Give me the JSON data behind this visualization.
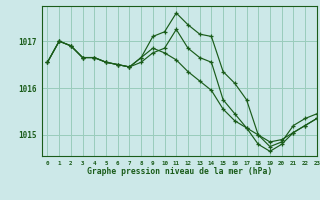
{
  "title": "Graphe pression niveau de la mer (hPa)",
  "background_color": "#cce8e8",
  "grid_color": "#99ccbb",
  "line_color": "#1a5c1a",
  "marker_color": "#1a5c1a",
  "xlim": [
    -0.5,
    23
  ],
  "ylim": [
    1014.55,
    1017.75
  ],
  "yticks": [
    1015,
    1016,
    1017
  ],
  "xticks": [
    0,
    1,
    2,
    3,
    4,
    5,
    6,
    7,
    8,
    9,
    10,
    11,
    12,
    13,
    14,
    15,
    16,
    17,
    18,
    19,
    20,
    21,
    22,
    23
  ],
  "series": [
    [
      1016.55,
      1017.0,
      1016.9,
      1016.65,
      1016.65,
      1016.55,
      1016.5,
      1016.45,
      1016.65,
      1017.1,
      1017.2,
      1017.6,
      1017.35,
      1017.15,
      1017.1,
      1016.35,
      1016.1,
      1015.75,
      1015.0,
      1014.75,
      1014.85,
      1015.2,
      1015.35,
      1015.45
    ],
    [
      1016.55,
      1017.0,
      1016.9,
      1016.65,
      1016.65,
      1016.55,
      1016.5,
      1016.45,
      1016.55,
      1016.75,
      1016.85,
      1017.25,
      1016.85,
      1016.65,
      1016.55,
      1015.75,
      1015.45,
      1015.15,
      1014.8,
      1014.65,
      1014.8,
      1015.05,
      1015.2,
      1015.35
    ],
    [
      1016.55,
      1017.0,
      1016.9,
      1016.65,
      1016.65,
      1016.55,
      1016.5,
      1016.45,
      1016.65,
      1016.85,
      1016.75,
      1016.6,
      1016.35,
      1016.15,
      1015.95,
      1015.55,
      1015.3,
      1015.15,
      1015.0,
      1014.85,
      1014.9,
      1015.05,
      1015.2,
      1015.35
    ]
  ]
}
